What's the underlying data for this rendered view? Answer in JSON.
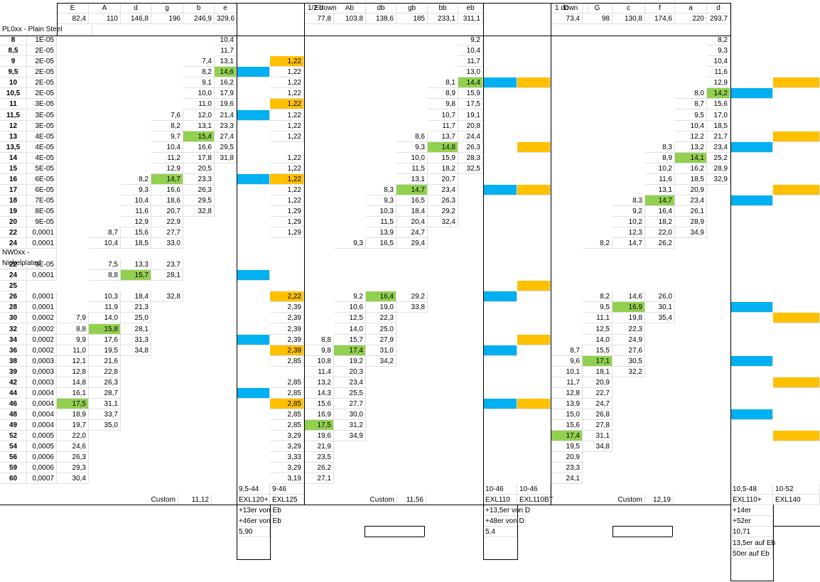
{
  "sheet": {
    "rows": [
      [
        "",
        "",
        "E",
        "A",
        "d",
        "g",
        "b",
        "e",
        "",
        "",
        "Eb",
        "Ab",
        "db",
        "gb",
        "bb",
        "eb",
        "",
        "",
        "D",
        "G",
        "c",
        "f",
        "a",
        "d",
        "",
        ""
      ],
      [
        "",
        "",
        "82,4",
        "110",
        "146,8",
        "196",
        "246,9",
        "329,6",
        "",
        "",
        "77,8",
        "103,8",
        "138,6",
        "185",
        "233,1",
        "311,1",
        "",
        "",
        "73,4",
        "98",
        "130,8",
        "174,6",
        "220",
        "293,7",
        "",
        ""
      ],
      [
        "PL0xx - Plain Steel",
        "",
        "",
        "",
        "",
        "",
        "",
        "",
        "",
        "",
        "",
        "",
        "",
        "",
        "",
        "",
        "",
        "",
        "",
        "",
        "",
        "",
        "",
        "",
        "",
        ""
      ],
      [
        "8",
        "1E-05",
        "",
        "",
        "",
        "",
        "",
        "10,4",
        "",
        "",
        "",
        "",
        "",
        "",
        "",
        "9,2",
        "",
        "",
        "",
        "",
        "",
        "",
        "",
        "8,2",
        "",
        ""
      ],
      [
        "8,5",
        "2E-05",
        "",
        "",
        "",
        "",
        "",
        "11,7",
        "",
        "",
        "",
        "",
        "",
        "",
        "",
        "10,4",
        "",
        "",
        "",
        "",
        "",
        "",
        "",
        "9,3",
        "",
        ""
      ],
      [
        "9",
        "2E-05",
        "",
        "",
        "",
        "",
        "7,4",
        "13,1",
        "",
        "1,22",
        "",
        "",
        "",
        "",
        "",
        "11,7",
        "",
        "",
        "",
        "",
        "",
        "",
        "",
        "10,4",
        "",
        ""
      ],
      [
        "9,5",
        "2E-05",
        "",
        "",
        "",
        "",
        "8,2",
        "14,6",
        "",
        "1,22",
        "",
        "",
        "",
        "",
        "",
        "13,0",
        "",
        "",
        "",
        "",
        "",
        "",
        "",
        "11,6",
        "",
        ""
      ],
      [
        "10",
        "2E-05",
        "",
        "",
        "",
        "",
        "9,1",
        "16,2",
        "",
        "1,22",
        "",
        "",
        "",
        "",
        "8,1",
        "14,4",
        "",
        "",
        "",
        "",
        "",
        "",
        "",
        "12,9",
        "",
        ""
      ],
      [
        "10,5",
        "2E-05",
        "",
        "",
        "",
        "",
        "10,0",
        "17,9",
        "",
        "1,22",
        "",
        "",
        "",
        "",
        "8,9",
        "15,9",
        "",
        "",
        "",
        "",
        "",
        "",
        "8,0",
        "14,2",
        "",
        ""
      ],
      [
        "11",
        "3E-05",
        "",
        "",
        "",
        "",
        "11,0",
        "19,6",
        "",
        "1,22",
        "",
        "",
        "",
        "",
        "9,8",
        "17,5",
        "",
        "",
        "",
        "",
        "",
        "",
        "8,7",
        "15,6",
        "",
        ""
      ],
      [
        "11,5",
        "3E-05",
        "",
        "",
        "",
        "7,6",
        "12,0",
        "21,4",
        "",
        "1,22",
        "",
        "",
        "",
        "",
        "10,7",
        "19,1",
        "",
        "",
        "",
        "",
        "",
        "",
        "9,5",
        "17,0",
        "",
        ""
      ],
      [
        "12",
        "3E-05",
        "",
        "",
        "",
        "8,2",
        "13,1",
        "23,3",
        "",
        "1,22",
        "",
        "",
        "",
        "",
        "11,7",
        "20,8",
        "",
        "",
        "",
        "",
        "",
        "",
        "10,4",
        "18,5",
        "",
        ""
      ],
      [
        "13",
        "4E-05",
        "",
        "",
        "",
        "9,7",
        "15,4",
        "27,4",
        "",
        "1,22",
        "",
        "",
        "",
        "8,6",
        "13,7",
        "24,4",
        "",
        "",
        "",
        "",
        "",
        "",
        "12,2",
        "21,7",
        "",
        ""
      ],
      [
        "13,5",
        "4E-05",
        "",
        "",
        "",
        "10,4",
        "16,6",
        "29,5",
        "",
        "",
        "",
        "",
        "",
        "9,3",
        "14,8",
        "26,3",
        "",
        "",
        "",
        "",
        "",
        "8,3",
        "13,2",
        "23,4",
        "",
        ""
      ],
      [
        "14",
        "4E-05",
        "",
        "",
        "",
        "11,2",
        "17,8",
        "31,8",
        "",
        "1,22",
        "",
        "",
        "",
        "10,0",
        "15,9",
        "28,3",
        "",
        "",
        "",
        "",
        "",
        "8,9",
        "14,1",
        "25,2",
        "",
        ""
      ],
      [
        "15",
        "5E-05",
        "",
        "",
        "",
        "12,9",
        "20,5",
        "",
        "",
        "1,22",
        "",
        "",
        "",
        "11,5",
        "18,2",
        "32,5",
        "",
        "",
        "",
        "",
        "",
        "10,2",
        "16,2",
        "28,9",
        "",
        ""
      ],
      [
        "16",
        "6E-05",
        "",
        "",
        "8,2",
        "14,7",
        "23,3",
        "",
        "",
        "1,22",
        "",
        "",
        "",
        "13,1",
        "20,7",
        "",
        "",
        "",
        "",
        "",
        "",
        "11,6",
        "18,5",
        "32,9",
        "",
        ""
      ],
      [
        "17",
        "6E-05",
        "",
        "",
        "9,3",
        "16,6",
        "26,3",
        "",
        "",
        "1,22",
        "",
        "",
        "8,3",
        "14,7",
        "23,4",
        "",
        "",
        "",
        "",
        "",
        "",
        "13,1",
        "20,9",
        "",
        "",
        ""
      ],
      [
        "18",
        "7E-05",
        "",
        "",
        "10,4",
        "18,6",
        "29,5",
        "",
        "",
        "1,22",
        "",
        "",
        "9,3",
        "16,5",
        "26,3",
        "",
        "",
        "",
        "",
        "",
        "8,3",
        "14,7",
        "23,4",
        "",
        "",
        ""
      ],
      [
        "19",
        "8E-05",
        "",
        "",
        "11,6",
        "20,7",
        "32,8",
        "",
        "",
        "1,29",
        "",
        "",
        "10,3",
        "18,4",
        "29,2",
        "",
        "",
        "",
        "",
        "",
        "9,2",
        "16,4",
        "26,1",
        "",
        "",
        ""
      ],
      [
        "20",
        "9E-05",
        "",
        "",
        "12,9",
        "22,9",
        "",
        "",
        "",
        "1,29",
        "",
        "",
        "11,5",
        "20,4",
        "32,4",
        "",
        "",
        "",
        "",
        "",
        "10,2",
        "18,2",
        "28,9",
        "",
        "",
        ""
      ],
      [
        "22",
        "0,0001",
        "",
        "8,7",
        "15,6",
        "27,7",
        "",
        "",
        "",
        "1,29",
        "",
        "",
        "13,9",
        "24,7",
        "",
        "",
        "",
        "",
        "",
        "",
        "12,3",
        "22,0",
        "34,9",
        "",
        "",
        ""
      ],
      [
        "24",
        "0,0001",
        "",
        "10,4",
        "18,5",
        "33,0",
        "",
        "",
        "",
        "",
        "",
        "9,3",
        "16,5",
        "29,4",
        "",
        "",
        "",
        "",
        "",
        "8,2",
        "14,7",
        "26,2",
        "",
        "",
        "",
        ""
      ],
      [
        "NW0xx - Nickelplated",
        "",
        "",
        "",
        "",
        "",
        "",
        "",
        "",
        "",
        "",
        "",
        "",
        "",
        "",
        "",
        "",
        "",
        "",
        "",
        "",
        "",
        "",
        "",
        "",
        ""
      ],
      [
        "22",
        "9E-05",
        "",
        "7,5",
        "13,3",
        "23,7",
        "",
        "",
        "",
        "",
        "",
        "",
        "",
        "",
        "",
        "",
        "",
        "",
        "",
        "",
        "",
        "",
        "",
        "",
        "",
        ""
      ],
      [
        "24",
        "0,0001",
        "",
        "8,8",
        "15,7",
        "28,1",
        "",
        "",
        "",
        "",
        "",
        "",
        "",
        "",
        "",
        "",
        "",
        "",
        "",
        "",
        "",
        "",
        "",
        "",
        "",
        ""
      ],
      [
        "25",
        "",
        "",
        "",
        "",
        "",
        "",
        "",
        "",
        "",
        "",
        "",
        "",
        "",
        "",
        "",
        "",
        "",
        "",
        "",
        "",
        "",
        "",
        "",
        "",
        ""
      ],
      [
        "26",
        "0,0001",
        "",
        "10,3",
        "18,4",
        "32,8",
        "",
        "",
        "",
        "2,22",
        "",
        "9,2",
        "16,4",
        "29,2",
        "",
        "",
        "",
        "",
        "",
        "8,2",
        "14,6",
        "26,0",
        "",
        "",
        "",
        ""
      ],
      [
        "28",
        "0,0001",
        "",
        "11,9",
        "21,3",
        "",
        "",
        "",
        "",
        "2,39",
        "",
        "10,6",
        "19,0",
        "33,8",
        "",
        "",
        "",
        "",
        "",
        "9,5",
        "16,9",
        "30,1",
        "",
        "",
        "",
        ""
      ],
      [
        "30",
        "0,0002",
        "7,9",
        "14,0",
        "25,0",
        "",
        "",
        "",
        "",
        "2,39",
        "",
        "12,5",
        "22,3",
        "",
        "",
        "",
        "",
        "",
        "",
        "11,1",
        "19,8",
        "35,4",
        "",
        "",
        "",
        ""
      ],
      [
        "32",
        "0,0002",
        "8,8",
        "15,8",
        "28,1",
        "",
        "",
        "",
        "",
        "2,39",
        "",
        "14,0",
        "25,0",
        "",
        "",
        "",
        "",
        "",
        "",
        "12,5",
        "22,3",
        "",
        "",
        "",
        "",
        ""
      ],
      [
        "34",
        "0,0002",
        "9,9",
        "17,6",
        "31,3",
        "",
        "",
        "",
        "",
        "2,39",
        "8,8",
        "15,7",
        "27,9",
        "",
        "",
        "",
        "",
        "",
        "",
        "14,0",
        "24,9",
        "",
        "",
        "",
        "",
        ""
      ],
      [
        "36",
        "0,0002",
        "11,0",
        "19,5",
        "34,8",
        "",
        "",
        "",
        "",
        "2,39",
        "9,8",
        "17,4",
        "31,0",
        "",
        "",
        "",
        "",
        "",
        "8,7",
        "15,5",
        "27,6",
        "",
        "",
        "",
        "",
        ""
      ],
      [
        "38",
        "0,0003",
        "12,1",
        "21,6",
        "",
        "",
        "",
        "",
        "",
        "2,85",
        "10,8",
        "19,2",
        "34,2",
        "",
        "",
        "",
        "",
        "",
        "9,6",
        "17,1",
        "30,5",
        "",
        "",
        "",
        "",
        ""
      ],
      [
        "39",
        "0,0003",
        "12,8",
        "22,8",
        "",
        "",
        "",
        "",
        "",
        "",
        "11,4",
        "20,3",
        "",
        "",
        "",
        "",
        "",
        "",
        "10,1",
        "18,1",
        "32,2",
        "",
        "",
        "",
        "",
        ""
      ],
      [
        "42",
        "0,0003",
        "14,8",
        "26,3",
        "",
        "",
        "",
        "",
        "",
        "2,85",
        "13,2",
        "23,4",
        "",
        "",
        "",
        "",
        "",
        "",
        "11,7",
        "20,9",
        "",
        "",
        "",
        "",
        "",
        ""
      ],
      [
        "44",
        "0,0004",
        "16,1",
        "28,7",
        "",
        "",
        "",
        "",
        "",
        "2,85",
        "14,3",
        "25,5",
        "",
        "",
        "",
        "",
        "",
        "",
        "12,8",
        "22,7",
        "",
        "",
        "",
        "",
        "",
        ""
      ],
      [
        "46",
        "0,0004",
        "17,5",
        "31,1",
        "",
        "",
        "",
        "",
        "",
        "2,85",
        "15,6",
        "27,7",
        "",
        "",
        "",
        "",
        "",
        "",
        "13,9",
        "24,7",
        "",
        "",
        "",
        "",
        "",
        ""
      ],
      [
        "48",
        "0,0004",
        "18,9",
        "33,7",
        "",
        "",
        "",
        "",
        "",
        "2,85",
        "16,9",
        "30,0",
        "",
        "",
        "",
        "",
        "",
        "",
        "15,0",
        "26,8",
        "",
        "",
        "",
        "",
        "",
        ""
      ],
      [
        "49",
        "0,0004",
        "19,7",
        "35,0",
        "",
        "",
        "",
        "",
        "",
        "2,85",
        "17,5",
        "31,2",
        "",
        "",
        "",
        "",
        "",
        "",
        "15,6",
        "27,8",
        "",
        "",
        "",
        "",
        "",
        ""
      ],
      [
        "52",
        "0,0005",
        "22,0",
        "",
        "",
        "",
        "",
        "",
        "",
        "3,29",
        "19,6",
        "34,9",
        "",
        "",
        "",
        "",
        "",
        "",
        "17,4",
        "31,1",
        "",
        "",
        "",
        "",
        "",
        ""
      ],
      [
        "54",
        "0,0005",
        "24,6",
        "",
        "",
        "",
        "",
        "",
        "",
        "3,29",
        "21,9",
        "",
        "",
        "",
        "",
        "",
        "",
        "",
        "19,5",
        "34,8",
        "",
        "",
        "",
        "",
        "",
        ""
      ],
      [
        "56",
        "0,0006",
        "26,3",
        "",
        "",
        "",
        "",
        "",
        "",
        "3,33",
        "23,5",
        "",
        "",
        "",
        "",
        "",
        "",
        "",
        "20,9",
        "",
        "",
        "",
        "",
        "",
        "",
        ""
      ],
      [
        "59",
        "0,0006",
        "29,3",
        "",
        "",
        "",
        "",
        "",
        "",
        "3,29",
        "26,2",
        "",
        "",
        "",
        "",
        "",
        "",
        "",
        "23,3",
        "",
        "",
        "",
        "",
        "",
        "",
        ""
      ],
      [
        "60",
        "0,0007",
        "30,4",
        "",
        "",
        "",
        "",
        "",
        "",
        "3,19",
        "27,1",
        "",
        "",
        "",
        "",
        "",
        "",
        "",
        "24,1",
        "",
        "",
        "",
        "",
        "",
        "",
        ""
      ],
      [
        "",
        "",
        "",
        "",
        "",
        "",
        "",
        "",
        "9,5-44",
        "9-46",
        "",
        "",
        "",
        "",
        "",
        "",
        "10-46",
        "10-46",
        "",
        "",
        "",
        "",
        "",
        "",
        "10,5-48",
        "10-52"
      ],
      [
        "",
        "",
        "",
        "",
        "",
        "",
        "",
        "",
        "EXL120+",
        "EXL125",
        "",
        "",
        "",
        "",
        "",
        "",
        "EXL110",
        "EXL110BT",
        "",
        "",
        "",
        "",
        "",
        "",
        "EXL110+",
        "EXL140"
      ],
      [
        "",
        "",
        "",
        "",
        "",
        "",
        "",
        "",
        "+13er von Eb",
        "",
        "",
        "",
        "",
        "",
        "",
        "",
        "+13,5er von D",
        "",
        "",
        "",
        "",
        "",
        "",
        "",
        "+14er",
        ""
      ],
      [
        "",
        "",
        "",
        "",
        "",
        "",
        "",
        "",
        "+46er von Eb",
        "",
        "",
        "",
        "",
        "",
        "",
        "",
        "+48er von D",
        "",
        "",
        "",
        "",
        "",
        "",
        "",
        "+52er",
        ""
      ],
      [
        "",
        "",
        "",
        "",
        "",
        "",
        "",
        "",
        "5,90",
        "",
        "",
        "",
        "",
        "",
        "",
        "",
        "5,4",
        "",
        "",
        "",
        "",
        "",
        "",
        "",
        "10,71",
        ""
      ],
      [
        "",
        "",
        "",
        "",
        "",
        "",
        "",
        "",
        "",
        "",
        "",
        "",
        "",
        "",
        "",
        "",
        "",
        "",
        "",
        "",
        "",
        "",
        "",
        "",
        "13,5er auf Eb",
        ""
      ],
      [
        "",
        "",
        "",
        "",
        "",
        "",
        "",
        "",
        "",
        "",
        "",
        "",
        "",
        "",
        "",
        "",
        "",
        "",
        "",
        "",
        "",
        "",
        "",
        "",
        "50er auf Eb",
        ""
      ]
    ],
    "extra": {
      "section_half_down": "1/2 down",
      "section_one_down": "1 down",
      "custom_label": "Custom",
      "custom_values": [
        "11,12",
        "11,56",
        "12,19"
      ]
    },
    "highlight_colors": {
      "green": "#92d050",
      "blue": "#00b0f0",
      "orange": "#ffc000"
    }
  }
}
